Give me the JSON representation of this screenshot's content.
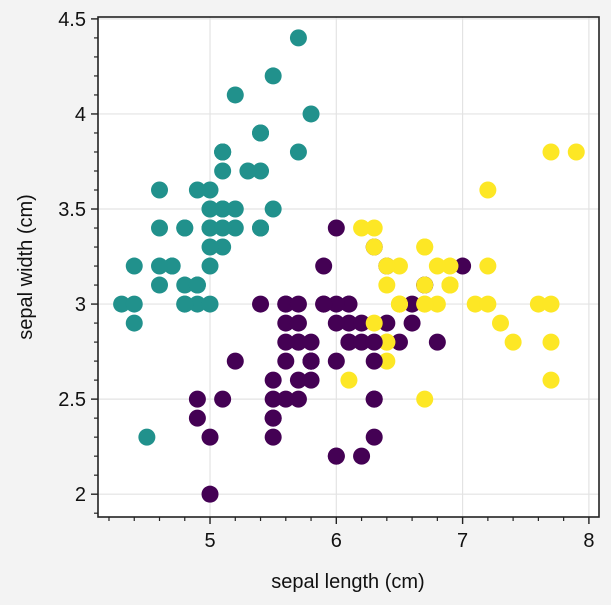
{
  "chart_data": {
    "type": "scatter",
    "title": "",
    "xlabel": "sepal length (cm)",
    "ylabel": "sepal width (cm)",
    "xlim": [
      4.113,
      8.08
    ],
    "ylim": [
      1.88,
      4.51
    ],
    "xticks": [
      5,
      6,
      7,
      8
    ],
    "xtick_labels": [
      "5",
      "6",
      "7",
      "8"
    ],
    "yticks": [
      2,
      2.5,
      3,
      3.5,
      4,
      4.5
    ],
    "ytick_labels": [
      "2",
      "2.5",
      "3",
      "3.5",
      "4",
      "4.5"
    ],
    "x_minor_step": 0.2,
    "y_minor_step": 0.1,
    "grid": true,
    "legend": "none",
    "colors": [
      "#440154",
      "#21918c",
      "#fde725"
    ],
    "points": [
      [
        5.1,
        3.5,
        1
      ],
      [
        4.9,
        3.0,
        1
      ],
      [
        4.7,
        3.2,
        1
      ],
      [
        4.6,
        3.1,
        1
      ],
      [
        5.0,
        3.6,
        1
      ],
      [
        5.4,
        3.9,
        1
      ],
      [
        4.6,
        3.4,
        1
      ],
      [
        5.0,
        3.4,
        1
      ],
      [
        4.4,
        2.9,
        1
      ],
      [
        4.9,
        3.1,
        1
      ],
      [
        5.4,
        3.7,
        1
      ],
      [
        4.8,
        3.4,
        1
      ],
      [
        4.8,
        3.0,
        1
      ],
      [
        4.3,
        3.0,
        1
      ],
      [
        5.8,
        4.0,
        1
      ],
      [
        5.7,
        4.4,
        1
      ],
      [
        5.4,
        3.9,
        1
      ],
      [
        5.1,
        3.5,
        1
      ],
      [
        5.7,
        3.8,
        1
      ],
      [
        5.1,
        3.8,
        1
      ],
      [
        5.4,
        3.4,
        1
      ],
      [
        5.1,
        3.7,
        1
      ],
      [
        4.6,
        3.6,
        1
      ],
      [
        5.1,
        3.3,
        1
      ],
      [
        4.8,
        3.4,
        1
      ],
      [
        5.0,
        3.0,
        1
      ],
      [
        5.0,
        3.4,
        1
      ],
      [
        5.2,
        3.5,
        1
      ],
      [
        5.2,
        3.4,
        1
      ],
      [
        4.7,
        3.2,
        1
      ],
      [
        4.8,
        3.1,
        1
      ],
      [
        5.4,
        3.4,
        1
      ],
      [
        5.2,
        4.1,
        1
      ],
      [
        5.5,
        4.2,
        1
      ],
      [
        4.9,
        3.1,
        1
      ],
      [
        5.0,
        3.2,
        1
      ],
      [
        5.5,
        3.5,
        1
      ],
      [
        4.9,
        3.6,
        1
      ],
      [
        4.4,
        3.0,
        1
      ],
      [
        5.1,
        3.4,
        1
      ],
      [
        5.0,
        3.5,
        1
      ],
      [
        4.5,
        2.3,
        1
      ],
      [
        4.4,
        3.2,
        1
      ],
      [
        5.0,
        3.5,
        1
      ],
      [
        5.1,
        3.8,
        1
      ],
      [
        4.8,
        3.0,
        1
      ],
      [
        5.1,
        3.8,
        1
      ],
      [
        4.6,
        3.2,
        1
      ],
      [
        5.3,
        3.7,
        1
      ],
      [
        5.0,
        3.3,
        1
      ],
      [
        7.0,
        3.2,
        0
      ],
      [
        6.4,
        3.2,
        0
      ],
      [
        6.9,
        3.1,
        2
      ],
      [
        5.5,
        2.3,
        0
      ],
      [
        6.5,
        2.8,
        0
      ],
      [
        5.7,
        2.8,
        0
      ],
      [
        6.3,
        3.3,
        0
      ],
      [
        4.9,
        2.4,
        0
      ],
      [
        6.6,
        2.9,
        0
      ],
      [
        5.2,
        2.7,
        0
      ],
      [
        5.0,
        2.0,
        0
      ],
      [
        5.9,
        3.0,
        0
      ],
      [
        6.0,
        2.2,
        0
      ],
      [
        6.1,
        2.9,
        0
      ],
      [
        5.6,
        2.9,
        0
      ],
      [
        6.7,
        3.1,
        0
      ],
      [
        5.6,
        3.0,
        0
      ],
      [
        5.8,
        2.7,
        0
      ],
      [
        6.2,
        2.2,
        0
      ],
      [
        5.6,
        2.5,
        0
      ],
      [
        5.9,
        3.2,
        0
      ],
      [
        6.1,
        2.8,
        0
      ],
      [
        6.3,
        2.5,
        0
      ],
      [
        6.1,
        2.8,
        0
      ],
      [
        6.4,
        2.9,
        0
      ],
      [
        6.6,
        3.0,
        0
      ],
      [
        6.8,
        2.8,
        0
      ],
      [
        6.7,
        3.0,
        2
      ],
      [
        6.0,
        2.9,
        0
      ],
      [
        5.7,
        2.6,
        0
      ],
      [
        5.5,
        2.4,
        0
      ],
      [
        5.5,
        2.4,
        0
      ],
      [
        5.8,
        2.7,
        0
      ],
      [
        6.0,
        2.7,
        0
      ],
      [
        5.4,
        3.0,
        0
      ],
      [
        6.0,
        3.4,
        0
      ],
      [
        6.7,
        3.1,
        0
      ],
      [
        6.3,
        2.3,
        0
      ],
      [
        5.6,
        3.0,
        0
      ],
      [
        5.5,
        2.5,
        0
      ],
      [
        5.5,
        2.6,
        0
      ],
      [
        6.1,
        3.0,
        0
      ],
      [
        5.8,
        2.6,
        0
      ],
      [
        5.0,
        2.3,
        0
      ],
      [
        5.6,
        2.7,
        0
      ],
      [
        5.7,
        3.0,
        0
      ],
      [
        5.7,
        2.9,
        0
      ],
      [
        6.2,
        2.9,
        0
      ],
      [
        5.1,
        2.5,
        0
      ],
      [
        5.7,
        2.8,
        0
      ],
      [
        6.3,
        3.3,
        2
      ],
      [
        5.8,
        2.7,
        0
      ],
      [
        7.1,
        3.0,
        2
      ],
      [
        6.3,
        2.9,
        2
      ],
      [
        6.5,
        3.0,
        2
      ],
      [
        7.6,
        3.0,
        2
      ],
      [
        4.9,
        2.5,
        0
      ],
      [
        7.3,
        2.9,
        2
      ],
      [
        6.7,
        2.5,
        2
      ],
      [
        7.2,
        3.6,
        2
      ],
      [
        6.5,
        3.2,
        2
      ],
      [
        6.4,
        2.7,
        2
      ],
      [
        6.8,
        3.0,
        2
      ],
      [
        5.7,
        2.5,
        0
      ],
      [
        5.8,
        2.8,
        0
      ],
      [
        6.4,
        3.2,
        2
      ],
      [
        6.5,
        3.0,
        2
      ],
      [
        7.7,
        3.8,
        2
      ],
      [
        7.7,
        2.6,
        2
      ],
      [
        6.0,
        2.2,
        0
      ],
      [
        6.9,
        3.2,
        2
      ],
      [
        5.6,
        2.8,
        0
      ],
      [
        7.7,
        2.8,
        2
      ],
      [
        6.3,
        2.7,
        0
      ],
      [
        6.7,
        3.3,
        2
      ],
      [
        7.2,
        3.2,
        2
      ],
      [
        6.2,
        2.8,
        0
      ],
      [
        6.1,
        3.0,
        0
      ],
      [
        6.4,
        2.8,
        2
      ],
      [
        7.2,
        3.0,
        2
      ],
      [
        7.4,
        2.8,
        2
      ],
      [
        7.9,
        3.8,
        2
      ],
      [
        6.4,
        2.8,
        2
      ],
      [
        6.3,
        2.8,
        0
      ],
      [
        6.1,
        2.6,
        2
      ],
      [
        7.7,
        3.0,
        2
      ],
      [
        6.3,
        3.4,
        2
      ],
      [
        6.4,
        3.1,
        2
      ],
      [
        6.0,
        3.0,
        0
      ],
      [
        6.9,
        3.1,
        2
      ],
      [
        6.7,
        3.1,
        2
      ],
      [
        6.9,
        3.1,
        2
      ],
      [
        5.8,
        2.7,
        0
      ],
      [
        6.8,
        3.2,
        2
      ],
      [
        6.7,
        3.3,
        2
      ],
      [
        6.7,
        3.0,
        2
      ],
      [
        6.3,
        2.5,
        0
      ],
      [
        6.5,
        3.0,
        2
      ],
      [
        6.2,
        3.4,
        2
      ],
      [
        5.9,
        3.0,
        0
      ]
    ]
  }
}
